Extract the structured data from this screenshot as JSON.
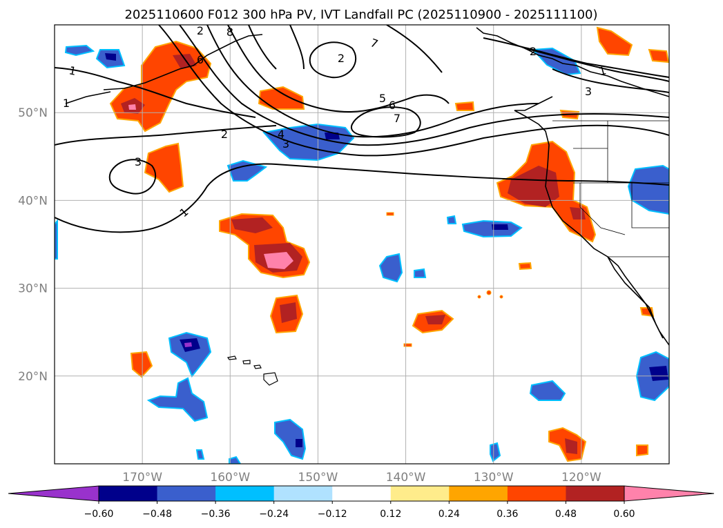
{
  "title": "2025110600 F012 300 hPa PV, IVT Landfall PC (2025110900 - 2025111100)",
  "map": {
    "lon_range": [
      -180,
      -110
    ],
    "lat_range": [
      10,
      60
    ],
    "lon_ticks": [
      {
        "lon": -170,
        "label": "170°W"
      },
      {
        "lon": -160,
        "label": "160°W"
      },
      {
        "lon": -150,
        "label": "150°W"
      },
      {
        "lon": -140,
        "label": "140°W"
      },
      {
        "lon": -130,
        "label": "130°W"
      },
      {
        "lon": -120,
        "label": "120°W"
      }
    ],
    "lat_ticks": [
      {
        "lat": 20,
        "label": "20°N"
      },
      {
        "lat": 30,
        "label": "30°N"
      },
      {
        "lat": 40,
        "label": "40°N"
      },
      {
        "lat": 50,
        "label": "50°N"
      }
    ],
    "gridlines": true,
    "contour_labels": [
      "1",
      "1",
      "1",
      "1",
      "2",
      "2",
      "2",
      "2",
      "3",
      "3",
      "3",
      "4",
      "5",
      "6",
      "6",
      "7",
      "7",
      "8"
    ]
  },
  "colorbar": {
    "extend": "both",
    "ticks": [
      "−0.60",
      "−0.48",
      "−0.36",
      "−0.24",
      "−0.12",
      "0.12",
      "0.24",
      "0.36",
      "0.48",
      "0.60"
    ],
    "colors": {
      "under": "#9932cc",
      "c1": "#00008b",
      "c2": "#3a5fcd",
      "c3": "#00bfff",
      "c4": "#b0e2ff",
      "c5": "#ffffff",
      "c6": "#ffec8b",
      "c7": "#ffa500",
      "c8": "#ff4500",
      "c9": "#b22222",
      "over": "#ff82ab"
    }
  }
}
